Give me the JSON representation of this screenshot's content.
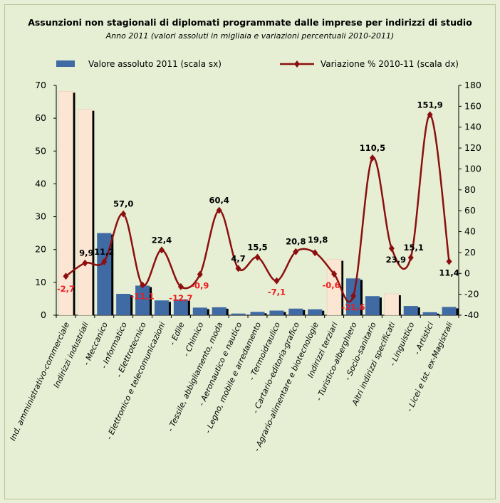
{
  "chart_data": {
    "type": "bar+line",
    "title": "Assunzioni non stagionali di diplomati programmate dalle imprese per indirizzi di studio",
    "subtitle": "Anno 2011 (valori assoluti in migliaia e variazioni percentuali 2010-2011)",
    "categories": [
      "Ind. amministrativo-commerciale",
      "Indirizzi industriali",
      "- Meccanico",
      "- Informatico",
      "- Elettrotecnico",
      "- Elettronico e telecomunicazioni",
      "- Edile",
      "- Chimico",
      "- Tessile, abbigliamento, moda",
      "- Aeronautico e nautico",
      "- Legno, mobile e arredamento",
      "- Termoidraulico",
      "- Cartario-editoria-grafico",
      "- Agrario-alimentare e biotecnologie",
      "Indirizzi terziari",
      "- Turistico-alberghiero",
      "- Socio-sanitario",
      "Altri indirizzi specificati",
      "- Linguistico",
      "- Artistici",
      "- Licei e Ist. ex-Magistrali"
    ],
    "series": [
      {
        "name": "Valore assoluto 2011 (scala sx)",
        "axis": "left",
        "kind": "bar",
        "values": [
          68.2,
          62.7,
          25.0,
          6.5,
          9.0,
          4.5,
          4.8,
          2.3,
          2.4,
          0.5,
          1.0,
          1.4,
          2.0,
          1.8,
          17.0,
          11.2,
          5.8,
          6.5,
          2.8,
          0.9,
          2.5
        ]
      },
      {
        "name": "Variazione % 2010-11 (scala dx)",
        "axis": "right",
        "kind": "line",
        "values": [
          -2.7,
          9.9,
          11.2,
          57.0,
          -11.1,
          22.4,
          -12.7,
          -0.9,
          60.4,
          4.7,
          15.5,
          -7.1,
          20.8,
          19.8,
          -0.6,
          -21.6,
          110.5,
          23.9,
          15.1,
          151.9,
          11.4
        ],
        "labels": [
          "-2,7",
          "9,9",
          "11,2",
          "57,0",
          "-11,1",
          "22,4",
          "-12,7",
          "-0,9",
          "60,4",
          "4,7",
          "15,5",
          "-7,1",
          "20,8",
          "19,8",
          "-0,6",
          "-21,6",
          "110,5",
          "23,9",
          "15,1",
          "151,9",
          "11,4"
        ]
      }
    ],
    "highlighted_categories": [
      0,
      1,
      14,
      17
    ],
    "y_left": {
      "min": 0,
      "max": 70,
      "ticks": [
        "0",
        "10",
        "20",
        "30",
        "40",
        "50",
        "60",
        "70"
      ]
    },
    "y_right": {
      "min": -40,
      "max": 180,
      "ticks": [
        "-40",
        "-20",
        "0",
        "20",
        "40",
        "60",
        "80",
        "100",
        "120",
        "140",
        "160",
        "180"
      ]
    },
    "legend_position": "top",
    "colors": {
      "bar": "#3f6aa4",
      "bar_highlight": "#fbe5d3",
      "line": "#8b0f0f",
      "label_positive": "#000000",
      "label_negative": "#ee1c1c",
      "background": "#e6eed3"
    }
  }
}
